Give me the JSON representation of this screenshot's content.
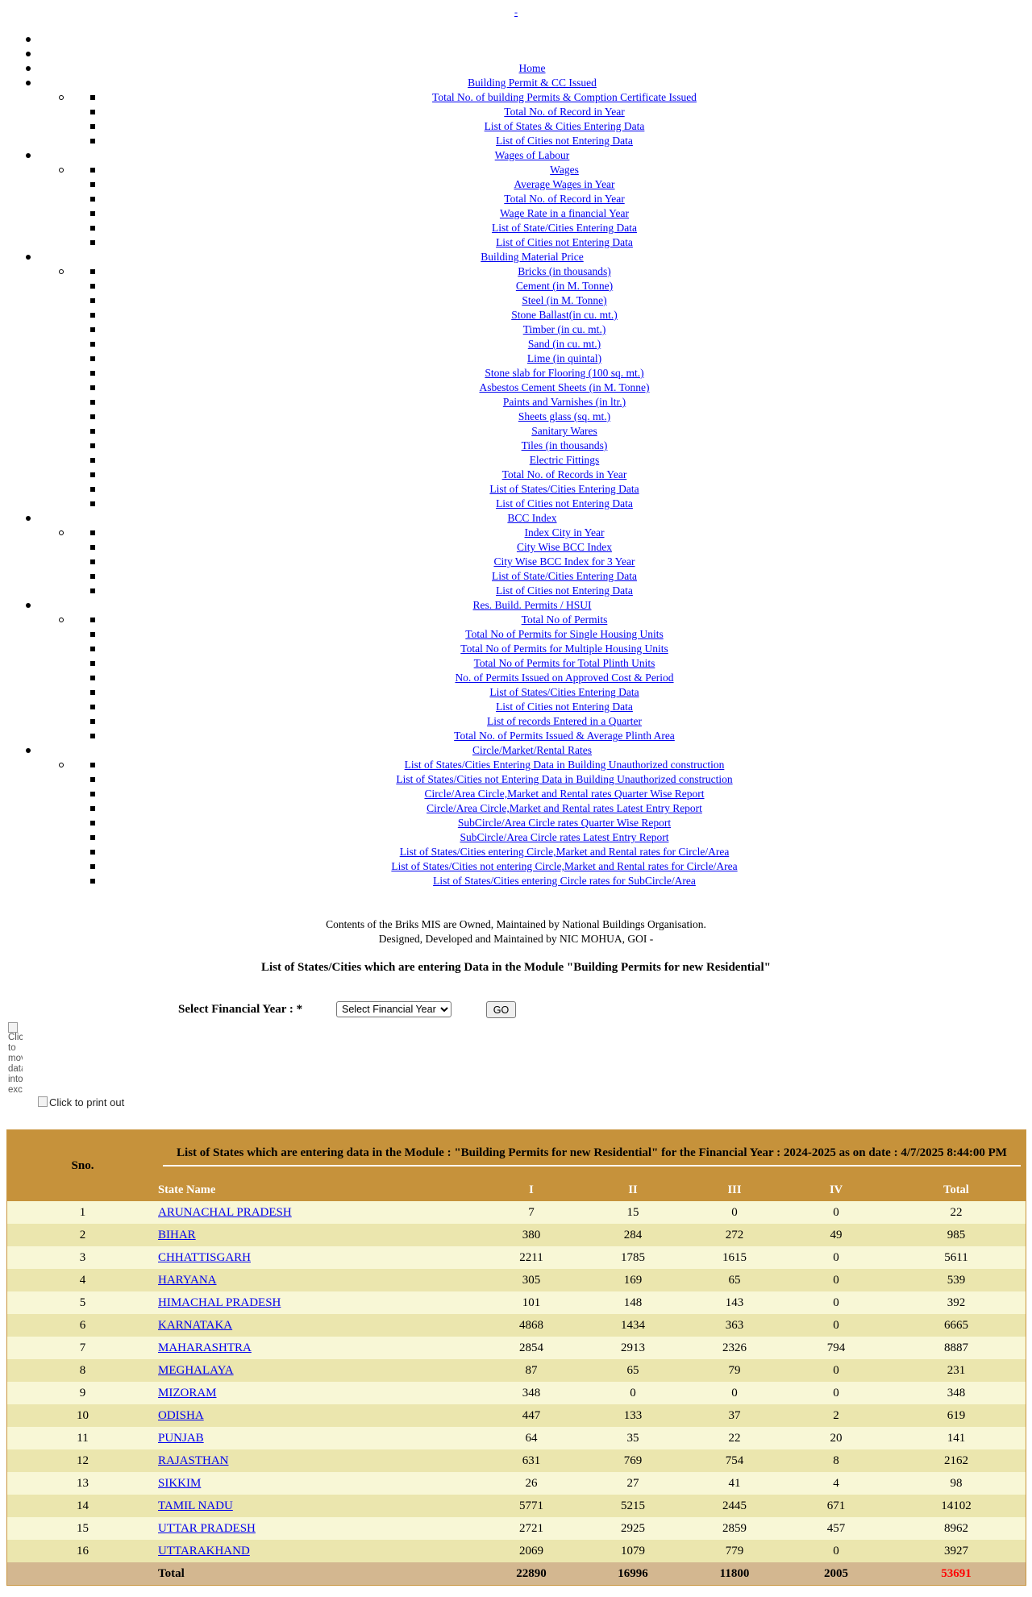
{
  "top_link": "-",
  "menu": [
    {
      "label": ""
    },
    {
      "label": ""
    },
    {
      "label": "Home"
    },
    {
      "label": "Building Permit & CC Issued",
      "items": [
        "Total No. of building Permits & Comption Certificate Issued",
        "Total No. of Record in Year",
        "List of States & Cities Entering Data",
        "List of Cities not Entering Data"
      ]
    },
    {
      "label": "Wages of Labour",
      "items": [
        "Wages",
        "Average Wages in Year",
        "Total No. of Record in Year",
        "Wage Rate in a financial Year",
        "List of State/Cities Entering Data",
        "List of Cities not Entering Data"
      ]
    },
    {
      "label": "Building Material Price",
      "items": [
        "Bricks (in thousands)",
        "Cement (in M. Tonne)",
        "Steel (in M. Tonne)",
        "Stone Ballast(in cu. mt.)",
        "Timber (in cu. mt.)",
        "Sand (in cu. mt.)",
        "Lime (in quintal)",
        "Stone slab for Flooring (100 sq. mt.)",
        "Asbestos Cement Sheets (in M. Tonne)",
        "Paints and Varnishes (in ltr.)",
        "Sheets glass (sq. mt.)",
        "Sanitary Wares",
        "Tiles (in thousands)",
        "Electric Fittings",
        "Total No. of Records in Year",
        "List of States/Cities Entering Data",
        "List of Cities not Entering Data"
      ]
    },
    {
      "label": "BCC Index",
      "items": [
        "Index City in Year",
        "City Wise BCC Index",
        "City Wise BCC Index for 3 Year",
        "List of State/Cities Entering Data",
        "List of Cities not Entering Data"
      ]
    },
    {
      "label": "Res. Build. Permits / HSUI",
      "items": [
        "Total No of Permits",
        "Total No of Permits for Single Housing Units",
        "Total No of Permits for Multiple Housing Units",
        "Total No of Permits for Total Plinth Units",
        "No. of Permits Issued on Approved Cost & Period",
        "List of States/Cities Entering Data",
        "List of Cities not Entering Data",
        "List of records Entered in a Quarter",
        "Total No. of Permits Issued & Average Plinth Area"
      ]
    },
    {
      "label": "Circle/Market/Rental Rates",
      "items": [
        "List of States/Cities Entering Data in Building Unauthorized construction",
        "List of States/Cities not Entering Data in Building Unauthorized construction",
        "Circle/Area Circle,Market and Rental rates Quarter Wise Report",
        "Circle/Area Circle,Market and Rental rates Latest Entry Report",
        "SubCircle/Area Circle rates Quarter Wise Report",
        "SubCircle/Area Circle rates Latest Entry Report",
        "List of States/Cities entering Circle,Market and Rental rates for Circle/Area",
        "List of States/Cities not entering Circle,Market and Rental rates for Circle/Area",
        "List of States/Cities entering Circle rates for SubCircle/Area"
      ]
    }
  ],
  "footer": {
    "line1": "Contents of the Briks MIS are Owned, Maintained by National Buildings Organisation.",
    "line2": "Designed, Developed and Maintained by NIC MOHUA, GOI -"
  },
  "page_heading": "List of States/Cities which are entering Data in the Module \"Building Permits for new Residential\"",
  "year_form": {
    "label": "Select Financial Year : *",
    "selected": "Select Financial Year",
    "go_label": "GO"
  },
  "export_alt": "Click to move data into excel",
  "print_alt": "Click to print out",
  "table": {
    "title": "List of States which are entering data in the Module : \"Building Permits for new Residential\" for the Financial Year : 2024-2025 as on date : 4/7/2025 8:44:00 PM",
    "sno_header": "Sno.",
    "headers": [
      "State Name",
      "I",
      "II",
      "III",
      "IV",
      "Total"
    ],
    "rows": [
      {
        "sno": "1",
        "state": "ARUNACHAL PRADESH",
        "i": "7",
        "ii": "15",
        "iii": "0",
        "iv": "0",
        "total": "22"
      },
      {
        "sno": "2",
        "state": "BIHAR",
        "i": "380",
        "ii": "284",
        "iii": "272",
        "iv": "49",
        "total": "985"
      },
      {
        "sno": "3",
        "state": "CHHATTISGARH",
        "i": "2211",
        "ii": "1785",
        "iii": "1615",
        "iv": "0",
        "total": "5611"
      },
      {
        "sno": "4",
        "state": "HARYANA",
        "i": "305",
        "ii": "169",
        "iii": "65",
        "iv": "0",
        "total": "539"
      },
      {
        "sno": "5",
        "state": "HIMACHAL PRADESH",
        "i": "101",
        "ii": "148",
        "iii": "143",
        "iv": "0",
        "total": "392"
      },
      {
        "sno": "6",
        "state": "KARNATAKA",
        "i": "4868",
        "ii": "1434",
        "iii": "363",
        "iv": "0",
        "total": "6665"
      },
      {
        "sno": "7",
        "state": "MAHARASHTRA",
        "i": "2854",
        "ii": "2913",
        "iii": "2326",
        "iv": "794",
        "total": "8887"
      },
      {
        "sno": "8",
        "state": "MEGHALAYA",
        "i": "87",
        "ii": "65",
        "iii": "79",
        "iv": "0",
        "total": "231"
      },
      {
        "sno": "9",
        "state": "MIZORAM",
        "i": "348",
        "ii": "0",
        "iii": "0",
        "iv": "0",
        "total": "348"
      },
      {
        "sno": "10",
        "state": "ODISHA",
        "i": "447",
        "ii": "133",
        "iii": "37",
        "iv": "2",
        "total": "619"
      },
      {
        "sno": "11",
        "state": "PUNJAB",
        "i": "64",
        "ii": "35",
        "iii": "22",
        "iv": "20",
        "total": "141"
      },
      {
        "sno": "12",
        "state": "RAJASTHAN",
        "i": "631",
        "ii": "769",
        "iii": "754",
        "iv": "8",
        "total": "2162"
      },
      {
        "sno": "13",
        "state": "SIKKIM",
        "i": "26",
        "ii": "27",
        "iii": "41",
        "iv": "4",
        "total": "98"
      },
      {
        "sno": "14",
        "state": "TAMIL NADU",
        "i": "5771",
        "ii": "5215",
        "iii": "2445",
        "iv": "671",
        "total": "14102"
      },
      {
        "sno": "15",
        "state": "UTTAR PRADESH",
        "i": "2721",
        "ii": "2925",
        "iii": "2859",
        "iv": "457",
        "total": "8962"
      },
      {
        "sno": "16",
        "state": "UTTARAKHAND",
        "i": "2069",
        "ii": "1079",
        "iii": "779",
        "iv": "0",
        "total": "3927"
      }
    ],
    "totals": {
      "label": "Total",
      "i": "22890",
      "ii": "16996",
      "iii": "11800",
      "iv": "2005",
      "total": "53691"
    }
  },
  "colors": {
    "header_bg": "#c6923b",
    "row_light": "#f8f7d6",
    "row_dark": "#ebe6ae",
    "total_row_bg": "#d3b790",
    "grand_total_text": "#ff0000",
    "link": "#0000ee"
  }
}
